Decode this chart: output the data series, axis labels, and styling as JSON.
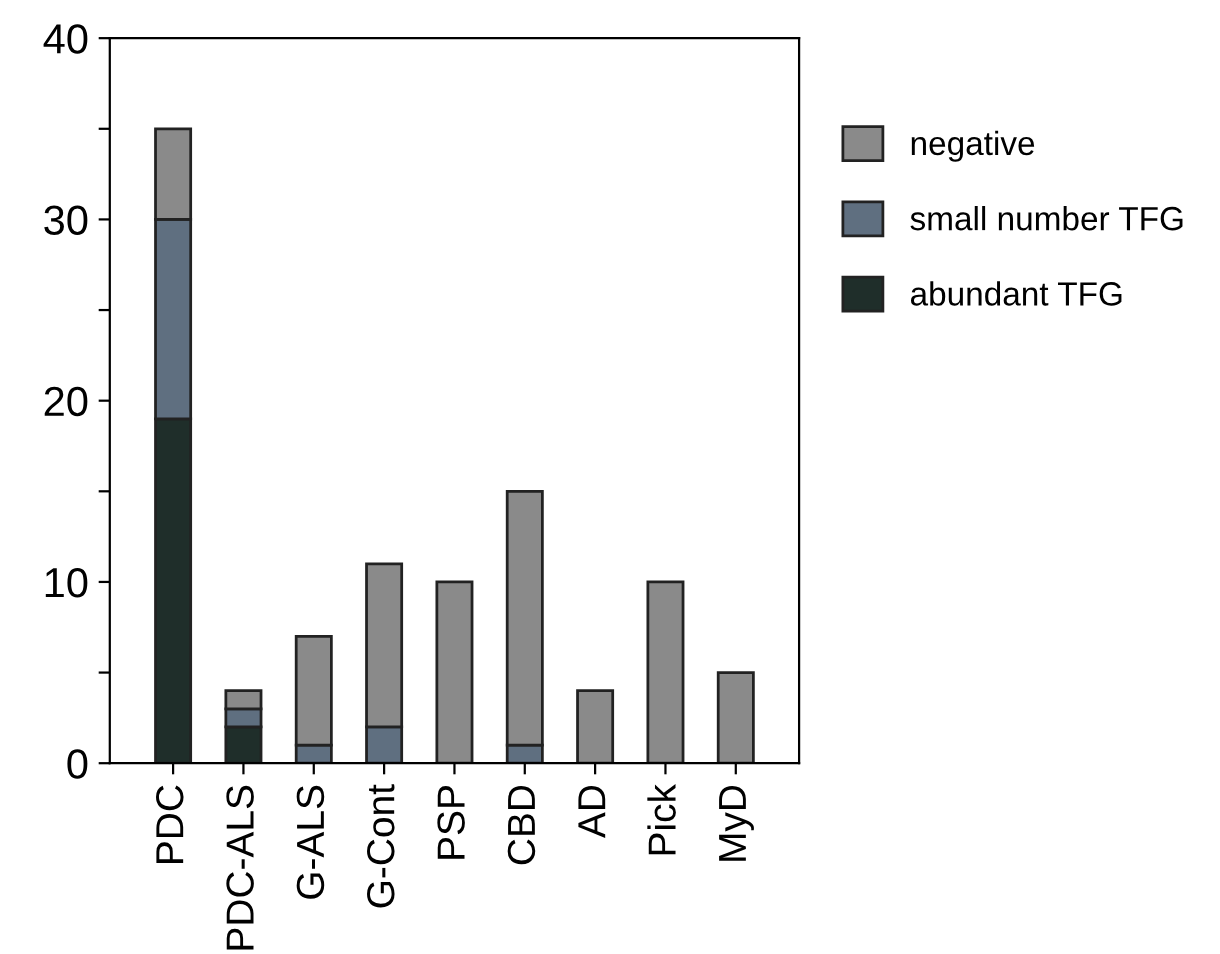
{
  "chart_data": {
    "type": "bar",
    "stacked": true,
    "categories": [
      "PDC",
      "PDC-ALS",
      "G-ALS",
      "G-Cont",
      "PSP",
      "CBD",
      "AD",
      "Pick",
      "MyD"
    ],
    "series": [
      {
        "name": "abundant TFG",
        "color": "#1f2e2a",
        "values": [
          19,
          2,
          0,
          0,
          0,
          0,
          0,
          0,
          0
        ]
      },
      {
        "name": "small number TFG",
        "color": "#5f6f80",
        "values": [
          11,
          1,
          1,
          2,
          0,
          1,
          0,
          0,
          0
        ]
      },
      {
        "name": "negative",
        "color": "#8a8a8a",
        "values": [
          5,
          1,
          6,
          9,
          10,
          14,
          4,
          10,
          5
        ]
      }
    ],
    "ylim": [
      0,
      40
    ],
    "yticks": [
      0,
      {
        "value": 5,
        "label": null
      },
      10,
      {
        "value": 15,
        "label": null
      },
      20,
      {
        "value": 25,
        "label": null
      },
      30,
      {
        "value": 35,
        "label": null
      },
      40
    ],
    "grid": false,
    "legend": "right"
  }
}
